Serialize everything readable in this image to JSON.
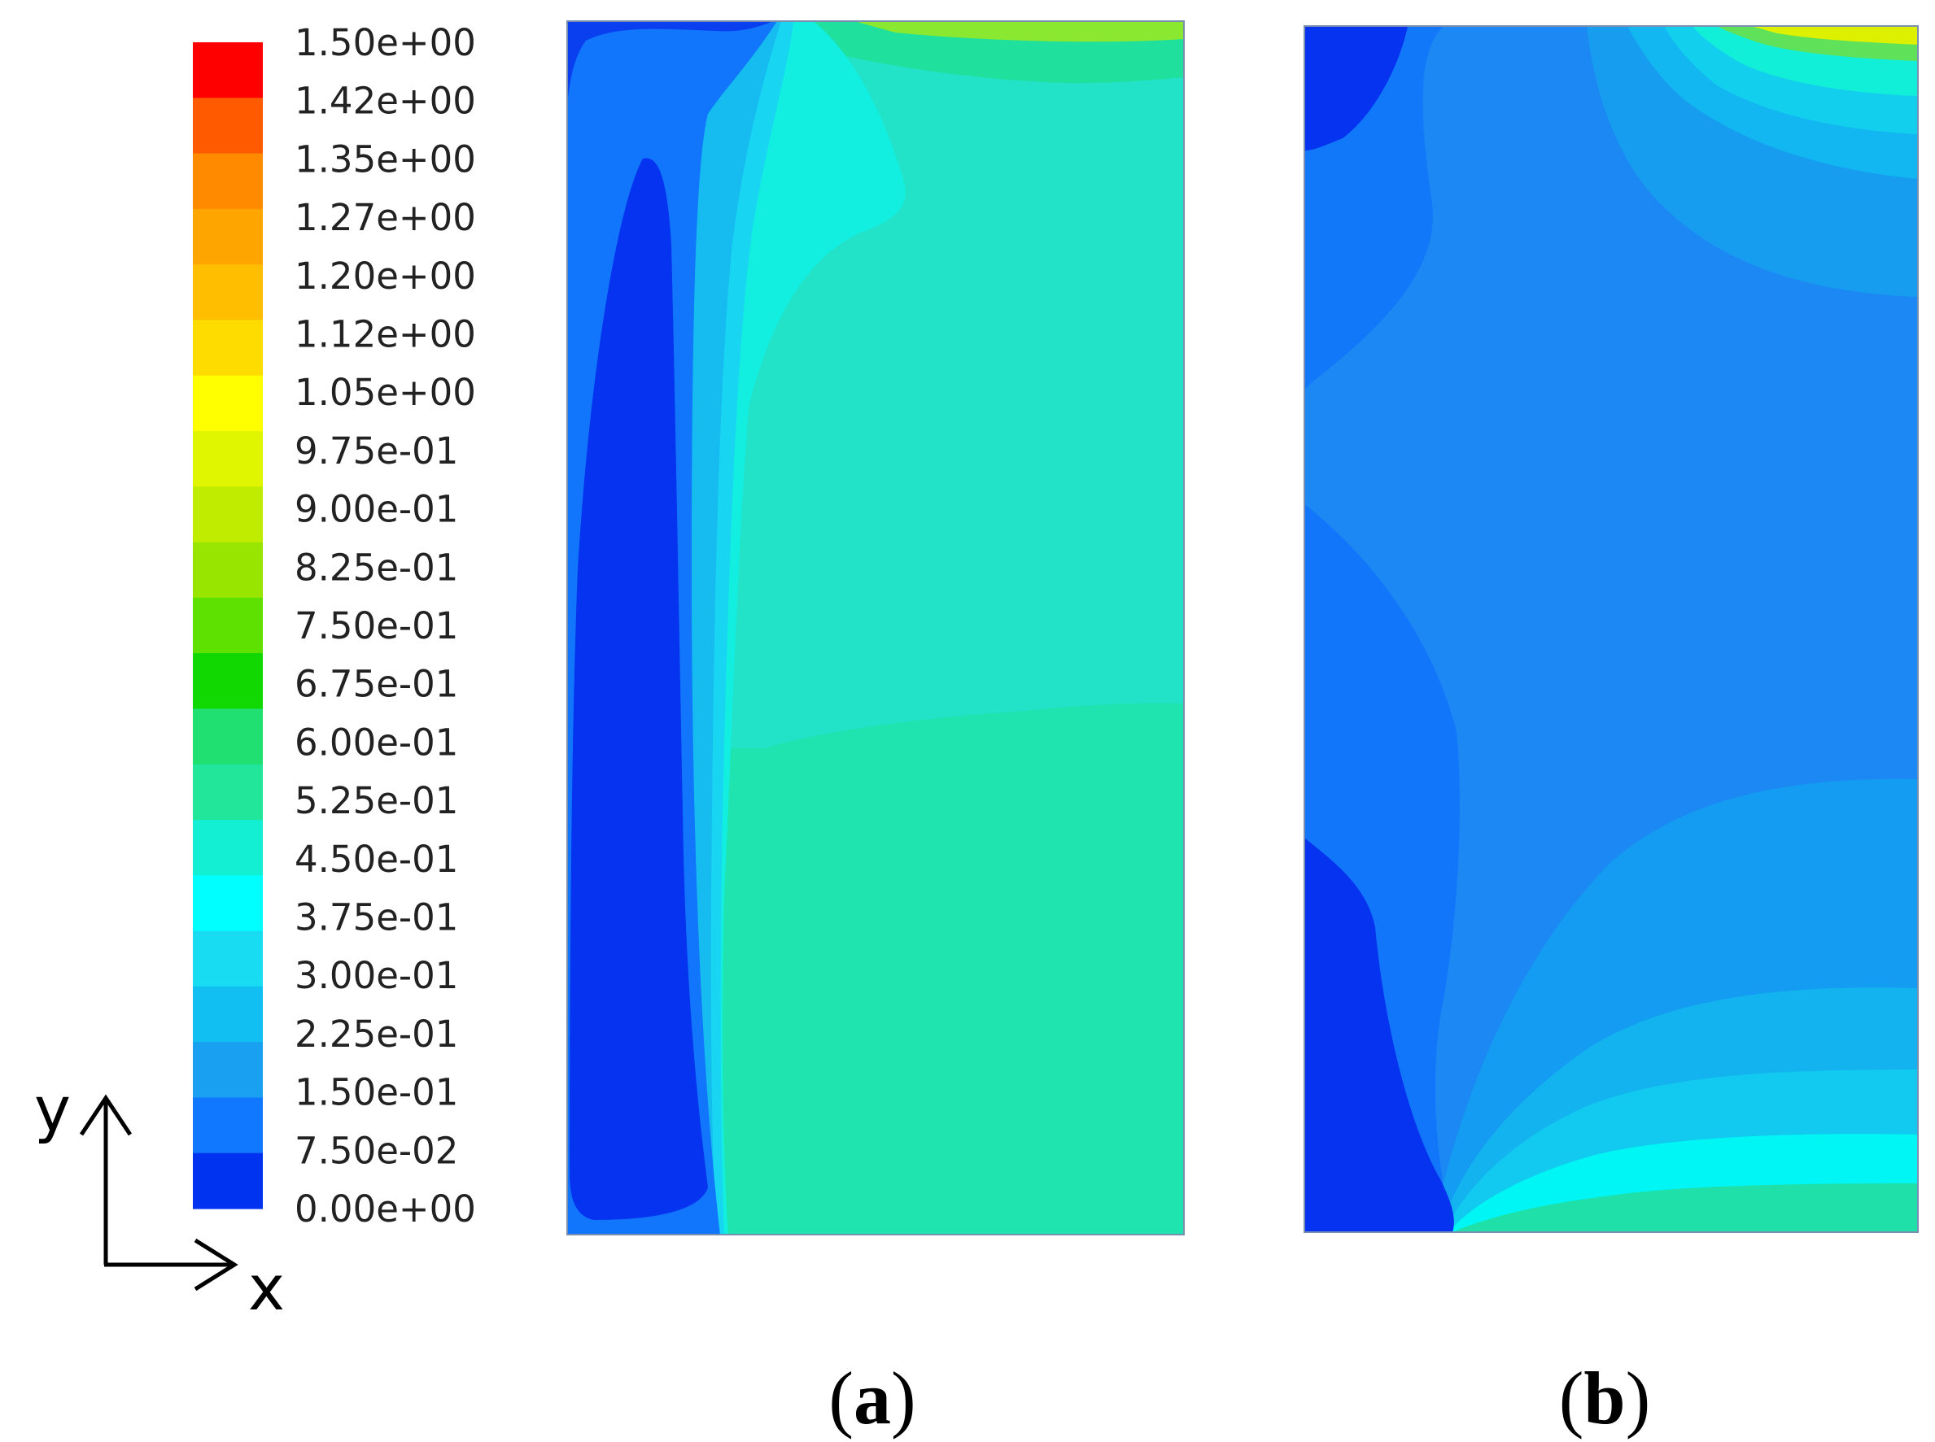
{
  "colorbar": {
    "labels": [
      "1.50e+00",
      "1.42e+00",
      "1.35e+00",
      "1.27e+00",
      "1.20e+00",
      "1.12e+00",
      "1.05e+00",
      "9.75e-01",
      "9.00e-01",
      "8.25e-01",
      "7.50e-01",
      "6.75e-01",
      "6.00e-01",
      "5.25e-01",
      "4.50e-01",
      "3.75e-01",
      "3.00e-01",
      "2.25e-01",
      "1.50e-01",
      "7.50e-02",
      "0.00e+00"
    ],
    "colors": [
      "#ff0000",
      "#ff5a00",
      "#ff8a00",
      "#ffa500",
      "#ffbf00",
      "#ffdc00",
      "#ffff00",
      "#e0f500",
      "#c0ec00",
      "#98e600",
      "#5fe100",
      "#10d800",
      "#1fe070",
      "#22e79a",
      "#12efd2",
      "#00ffff",
      "#18dcf2",
      "#12bff2",
      "#1aa0f0",
      "#1078ff",
      "#0033f0"
    ]
  },
  "axes": {
    "y_label": "y",
    "x_label": "x"
  },
  "panels": [
    {
      "label": "a"
    },
    {
      "label": "b"
    }
  ]
}
